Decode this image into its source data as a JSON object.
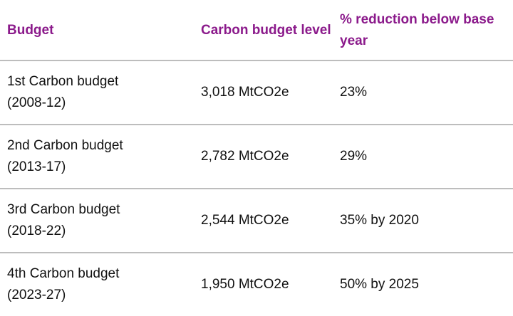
{
  "headers": [
    "Budget",
    "Carbon budget level",
    "% reduction below base year"
  ],
  "rows": [
    {
      "name": "1st Carbon budget",
      "period": "(2008-12)",
      "level": "3,018 MtCO2e",
      "reduction": "23%"
    },
    {
      "name": "2nd Carbon budget",
      "period": "(2013-17)",
      "level": "2,782 MtCO2e",
      "reduction": "29%"
    },
    {
      "name": "3rd Carbon budget",
      "period": "(2018-22)",
      "level": "2,544 MtCO2e",
      "reduction": "35% by 2020"
    },
    {
      "name": "4th Carbon budget",
      "period": "(2023-27)",
      "level": "1,950 MtCO2e",
      "reduction": "50% by 2025"
    }
  ],
  "colors": {
    "header": "#8b1a8b",
    "divider": "#bdbdbd"
  }
}
